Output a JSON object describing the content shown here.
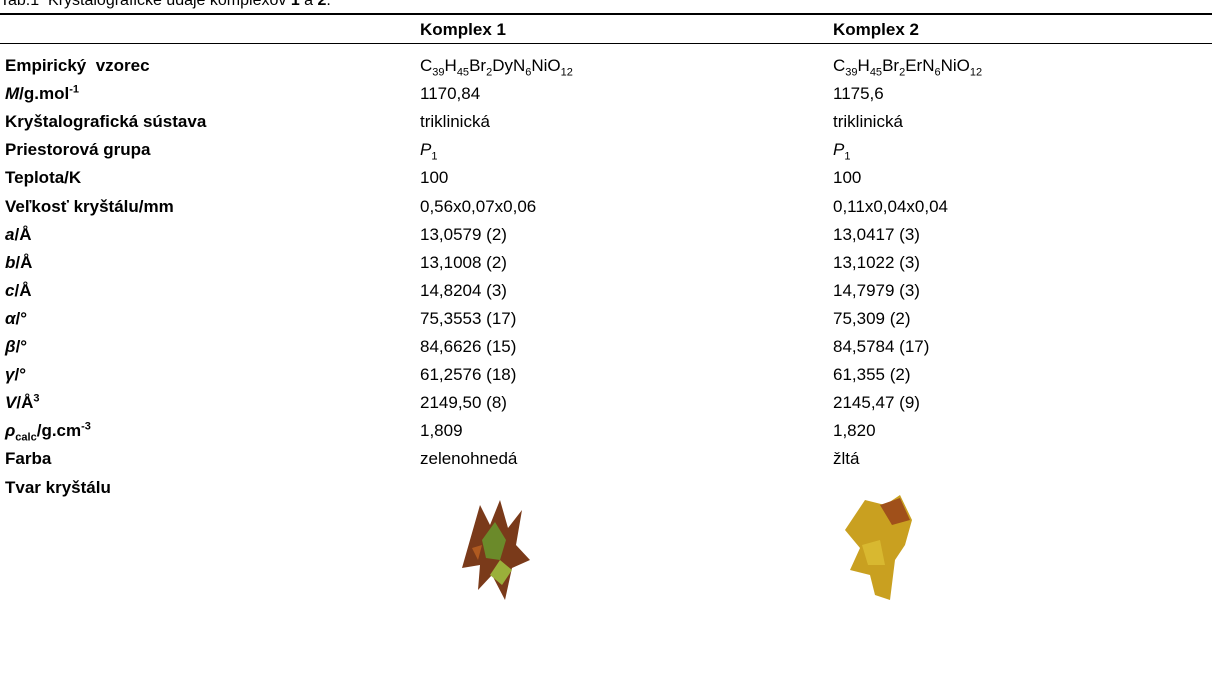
{
  "caption": [
    {
      "t": "Tab.1  Kryštalografické údaje komplexov "
    },
    {
      "b": "1"
    },
    {
      "t": " a "
    },
    {
      "b": "2"
    },
    {
      "t": "."
    }
  ],
  "table": {
    "header": [
      "Komplex 1",
      "Komplex 2"
    ],
    "rows": [
      {
        "label": "Empirický  vzorec",
        "cells": [
          [
            {
              "t": "C"
            },
            {
              "sub": "39"
            },
            {
              "t": "H"
            },
            {
              "sub": "45"
            },
            {
              "t": "Br"
            },
            {
              "sub": "2"
            },
            {
              "t": "DyN"
            },
            {
              "sub": "6"
            },
            {
              "t": "NiO"
            },
            {
              "sub": "12"
            }
          ],
          [
            {
              "t": "C"
            },
            {
              "sub": "39"
            },
            {
              "t": "H"
            },
            {
              "sub": "45"
            },
            {
              "t": "Br"
            },
            {
              "sub": "2"
            },
            {
              "t": "ErN"
            },
            {
              "sub": "6"
            },
            {
              "t": "NiO"
            },
            {
              "sub": "12"
            }
          ]
        ]
      },
      {
        "label": [
          {
            "i": "M"
          },
          {
            "t": "/g.mol"
          },
          {
            "sup": "-1"
          }
        ],
        "cells": [
          "1170,84",
          "1175,6"
        ]
      },
      {
        "label": "Kryštalografická sústava",
        "cells": [
          "triklinická",
          "triklinická"
        ]
      },
      {
        "label": "Priestorová grupa",
        "cells": [
          [
            {
              "i": "P"
            },
            {
              "sub": "1"
            }
          ],
          [
            {
              "i": "P"
            },
            {
              "sub": "1"
            }
          ]
        ]
      },
      {
        "label": "Teplota/K",
        "cells": [
          "100",
          "100"
        ]
      },
      {
        "label": "Veľkosť kryštálu/mm",
        "cells": [
          "0,56x0,07x0,06",
          "0,11x0,04x0,04"
        ]
      },
      {
        "label": [
          {
            "i": "a"
          },
          {
            "t": "/Å"
          }
        ],
        "cells": [
          "13,0579 (2)",
          "13,0417 (3)"
        ]
      },
      {
        "label": [
          {
            "i": "b"
          },
          {
            "t": "/Å"
          }
        ],
        "cells": [
          "13,1008 (2)",
          "13,1022 (3)"
        ]
      },
      {
        "label": [
          {
            "i": "c"
          },
          {
            "t": "/Å"
          }
        ],
        "cells": [
          "14,8204 (3)",
          "14,7979 (3)"
        ]
      },
      {
        "label": [
          {
            "i": "α"
          },
          {
            "t": "/°"
          }
        ],
        "cells": [
          "75,3553 (17)",
          "75,309 (2)"
        ]
      },
      {
        "label": [
          {
            "i": "β"
          },
          {
            "t": "/°"
          }
        ],
        "cells": [
          "84,6626 (15)",
          "84,5784 (17)"
        ]
      },
      {
        "label": [
          {
            "i": "γ"
          },
          {
            "t": "/°"
          }
        ],
        "cells": [
          "61,2576 (18)",
          "61,355 (2)"
        ]
      },
      {
        "label": [
          {
            "i": "V"
          },
          {
            "t": "/Å"
          },
          {
            "sup": "3"
          }
        ],
        "cells": [
          "2149,50 (8)",
          "2145,47 (9)"
        ]
      },
      {
        "label": [
          {
            "i": "ρ"
          },
          {
            "sub": "calc"
          },
          {
            "t": "/g.cm"
          },
          {
            "sup": "-3"
          }
        ],
        "cells": [
          "1,809",
          "1,820"
        ]
      },
      {
        "label": "Farba",
        "cells": [
          "zelenohnedá",
          "žltá"
        ]
      },
      {
        "label": "Tvar kryštálu"
      }
    ]
  }
}
